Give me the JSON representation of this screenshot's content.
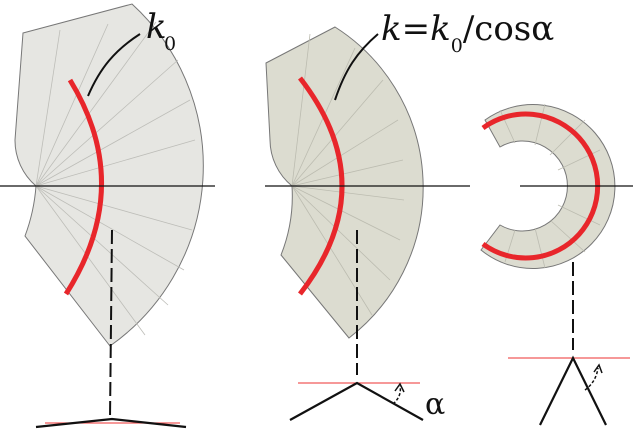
{
  "panels": [
    {
      "id": "left",
      "label_main": "k",
      "label_sub": "0"
    },
    {
      "id": "middle",
      "label_k": "k",
      "label_eq": "=",
      "label_k0": "k",
      "label_k0_sub": "0",
      "label_slash": "/",
      "label_cos": "cos",
      "label_alpha": "α"
    },
    {
      "id": "right"
    }
  ],
  "bottom_labels": {
    "alpha": "α"
  },
  "colors": {
    "sector_fill_left": "#e6e6e2",
    "sector_fill_middle": "#dcdcd0",
    "sector_fill_right": "#dcdcd0",
    "curve_red": "#e8262b",
    "guide_red": "#f05a5a",
    "line_black": "#111111"
  }
}
